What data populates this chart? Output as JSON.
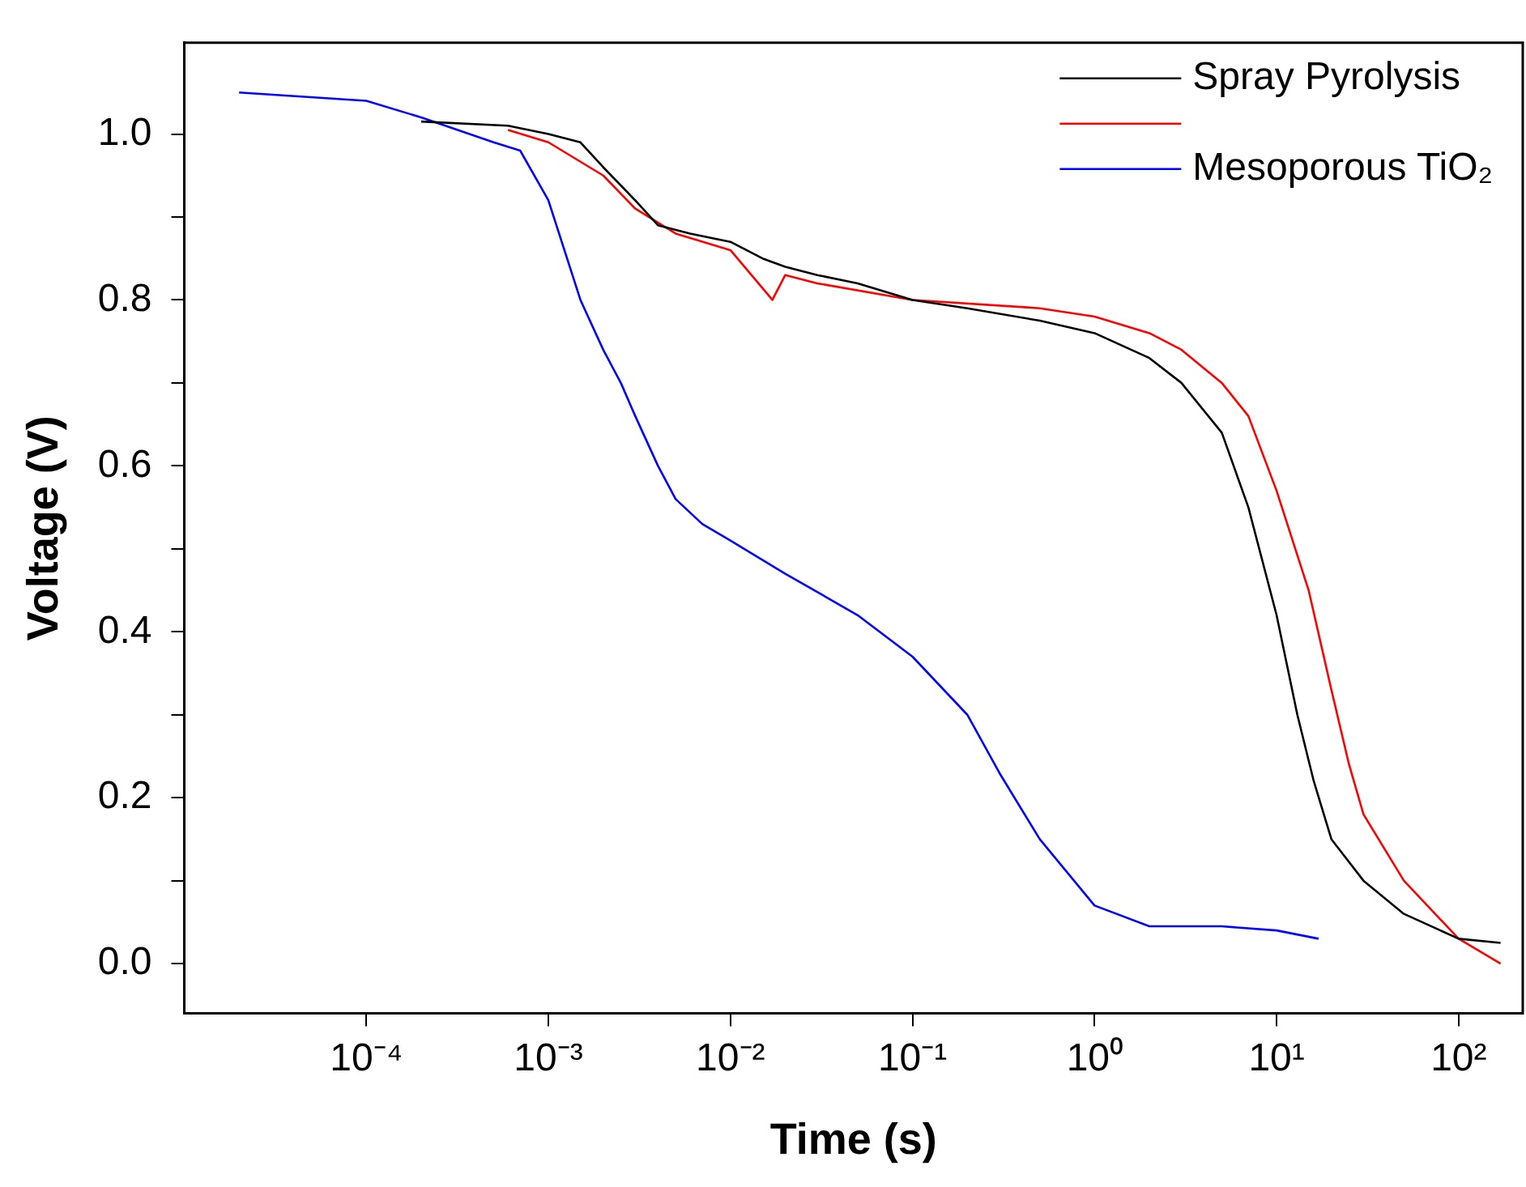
{
  "chart_data": {
    "type": "line",
    "xlabel": "Time (s)",
    "ylabel": "Voltage (V)",
    "log": "x",
    "xlim": [
      1e-05,
      225
    ],
    "ylim": [
      -0.06,
      1.11
    ],
    "xticks": [
      {
        "value": 0.0001,
        "label": "10⁻⁴"
      },
      {
        "value": 0.001,
        "label": "10⁻³"
      },
      {
        "value": 0.01,
        "label": "10⁻²"
      },
      {
        "value": 0.1,
        "label": "10⁻¹"
      },
      {
        "value": 1,
        "label": "10⁰"
      },
      {
        "value": 10,
        "label": "10¹"
      },
      {
        "value": 100,
        "label": "10²"
      }
    ],
    "yticks": [
      {
        "value": 0,
        "label": "0.0"
      },
      {
        "value": 0.1,
        "label": null
      },
      {
        "value": 0.2,
        "label": "0.2"
      },
      {
        "value": 0.3,
        "label": null
      },
      {
        "value": 0.4,
        "label": "0.4"
      },
      {
        "value": 0.5,
        "label": null
      },
      {
        "value": 0.6,
        "label": "0.6"
      },
      {
        "value": 0.7,
        "label": null
      },
      {
        "value": 0.8,
        "label": "0.8"
      },
      {
        "value": 0.9,
        "label": null
      },
      {
        "value": 1,
        "label": "1.0"
      }
    ],
    "grid": false,
    "legend": "top right",
    "marker": "none",
    "line_style": "solid",
    "series": [
      {
        "name": "Spray Pyrolysis",
        "color": "#000000",
        "x": [
          0.0002,
          0.0006,
          0.001,
          0.0015,
          0.002,
          0.003,
          0.004,
          0.006,
          0.01,
          0.015,
          0.02,
          0.03,
          0.05,
          0.1,
          0.2,
          0.5,
          1,
          2,
          3,
          5,
          7,
          10,
          13,
          16,
          20,
          30,
          50,
          100,
          170
        ],
        "values": [
          1.015,
          1.01,
          1.0,
          0.99,
          0.96,
          0.92,
          0.89,
          0.88,
          0.87,
          0.85,
          0.84,
          0.83,
          0.82,
          0.8,
          0.79,
          0.775,
          0.76,
          0.73,
          0.7,
          0.64,
          0.55,
          0.42,
          0.3,
          0.22,
          0.15,
          0.1,
          0.06,
          0.03,
          0.025
        ]
      },
      {
        "color": "#ff0000",
        "x": [
          0.0006,
          0.001,
          0.002,
          0.003,
          0.005,
          0.01,
          0.017,
          0.02,
          0.03,
          0.1,
          0.5,
          1,
          2,
          3,
          5,
          7,
          10,
          15,
          20,
          25,
          30,
          50,
          100,
          170
        ],
        "values": [
          1.005,
          0.99,
          0.95,
          0.91,
          0.88,
          0.86,
          0.8,
          0.83,
          0.82,
          0.8,
          0.79,
          0.78,
          0.76,
          0.74,
          0.7,
          0.66,
          0.57,
          0.45,
          0.33,
          0.24,
          0.18,
          0.1,
          0.03,
          0.0
        ]
      },
      {
        "name": "Mesoporous TiO₂",
        "color": "#0000ff",
        "x": [
          2e-05,
          0.0001,
          0.0002,
          0.0005,
          0.0007,
          0.001,
          0.0015,
          0.002,
          0.0025,
          0.003,
          0.004,
          0.005,
          0.007,
          0.01,
          0.02,
          0.05,
          0.1,
          0.2,
          0.3,
          0.5,
          1,
          2,
          5,
          10,
          17
        ],
        "values": [
          1.05,
          1.04,
          1.02,
          0.99,
          0.98,
          0.92,
          0.8,
          0.74,
          0.7,
          0.66,
          0.6,
          0.56,
          0.53,
          0.51,
          0.47,
          0.42,
          0.37,
          0.3,
          0.23,
          0.15,
          0.07,
          0.045,
          0.045,
          0.04,
          0.03
        ]
      }
    ]
  }
}
